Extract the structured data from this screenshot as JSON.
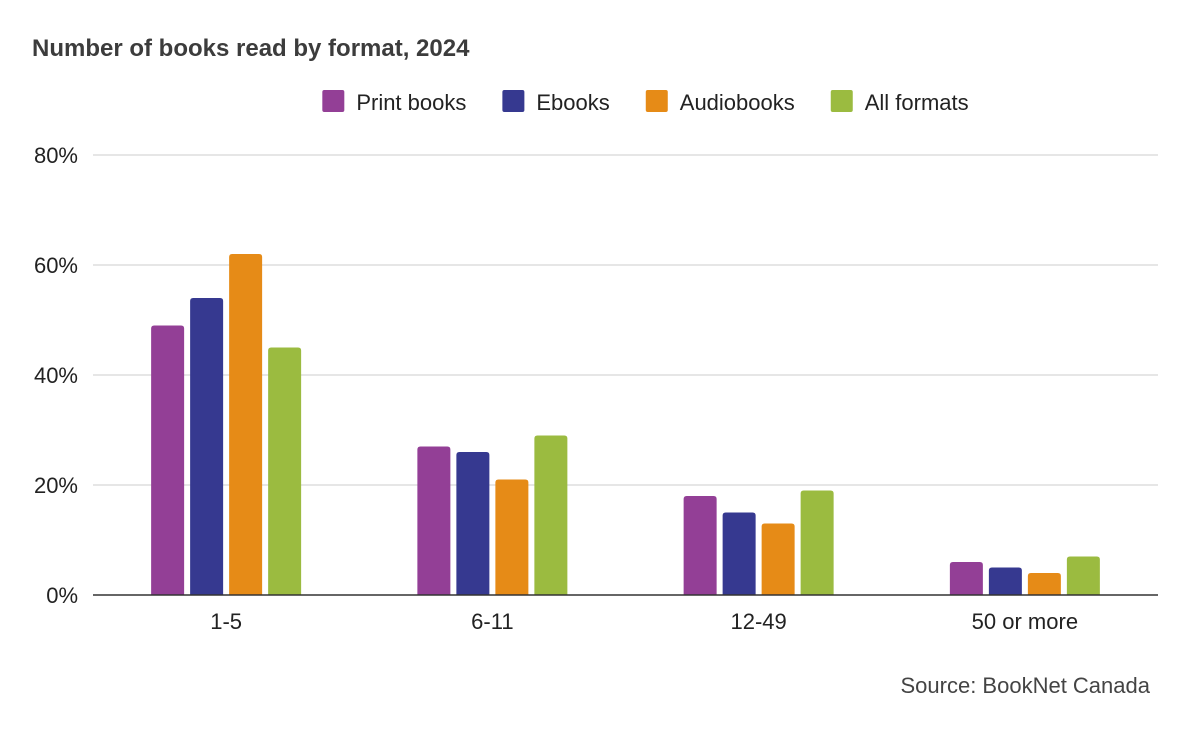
{
  "chart_data": {
    "type": "bar",
    "title": "Number of books read by format, 2024",
    "categories": [
      "1-5",
      "6-11",
      "12-49",
      "50 or more"
    ],
    "series": [
      {
        "name": "Print books",
        "color": "#933f96",
        "values": [
          49,
          27,
          18,
          6
        ]
      },
      {
        "name": "Ebooks",
        "color": "#363990",
        "values": [
          54,
          26,
          15,
          5
        ]
      },
      {
        "name": "Audiobooks",
        "color": "#e68b17",
        "values": [
          62,
          21,
          13,
          4
        ]
      },
      {
        "name": "All formats",
        "color": "#9bbb40",
        "values": [
          45,
          29,
          19,
          7
        ]
      }
    ],
    "ylim": [
      0,
      80
    ],
    "yticks": [
      0,
      20,
      40,
      60,
      80
    ],
    "ytick_labels": [
      "0%",
      "20%",
      "40%",
      "60%",
      "80%"
    ],
    "xlabel": "",
    "ylabel": "",
    "grid": true,
    "legend_position": "top",
    "source": "Source: BookNet Canada"
  }
}
